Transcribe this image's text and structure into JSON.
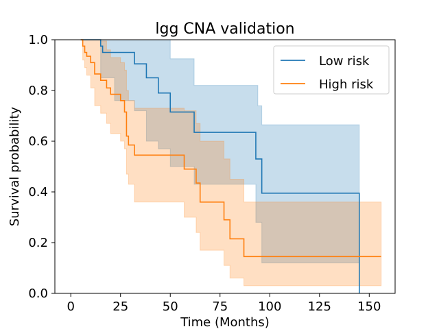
{
  "chart_data": {
    "type": "line",
    "title": "lgg CNA validation",
    "xlabel": "Time (Months)",
    "ylabel": "Survival probability",
    "xlim": [
      -8,
      163
    ],
    "ylim": [
      0,
      1
    ],
    "xticks": [
      0,
      25,
      50,
      75,
      100,
      125,
      150
    ],
    "yticks": [
      0.0,
      0.2,
      0.4,
      0.6,
      0.8,
      1.0
    ],
    "legend_position": "top-right",
    "step": "post",
    "grid": false,
    "series": [
      {
        "name": "Low risk",
        "color": "#1f77b4",
        "band_color": "#1f77b4",
        "x": [
          5,
          15,
          16,
          22,
          32,
          38,
          44,
          50,
          62,
          93,
          94,
          96,
          145,
          145
        ],
        "y": [
          1.0,
          0.975,
          0.95,
          0.95,
          0.905,
          0.85,
          0.79,
          0.715,
          0.635,
          0.53,
          0.53,
          0.395,
          0.395,
          0.0
        ],
        "ci_low": [
          1.0,
          0.85,
          0.85,
          0.76,
          0.72,
          0.6,
          0.57,
          0.5,
          0.43,
          0.28,
          0.28,
          0.12,
          0.12,
          0.12
        ],
        "ci_high": [
          1.0,
          1.0,
          1.0,
          1.0,
          1.0,
          1.0,
          1.0,
          0.925,
          0.82,
          0.82,
          0.74,
          0.665,
          0.665,
          0.665
        ]
      },
      {
        "name": "High risk",
        "color": "#ff7f0e",
        "band_color": "#ff7f0e",
        "x": [
          5,
          6,
          7,
          8,
          10,
          12,
          15,
          18,
          20,
          25,
          27,
          28,
          29,
          32,
          55,
          57,
          63,
          65,
          77,
          80,
          87,
          156
        ],
        "y": [
          1.0,
          0.975,
          0.95,
          0.935,
          0.91,
          0.865,
          0.84,
          0.81,
          0.785,
          0.76,
          0.715,
          0.62,
          0.585,
          0.545,
          0.545,
          0.49,
          0.435,
          0.36,
          0.29,
          0.215,
          0.145,
          0.145
        ],
        "ci_low": [
          1.0,
          0.92,
          0.89,
          0.86,
          0.81,
          0.74,
          0.71,
          0.67,
          0.63,
          0.6,
          0.57,
          0.47,
          0.43,
          0.36,
          0.36,
          0.3,
          0.24,
          0.17,
          0.11,
          0.06,
          0.03,
          0.03
        ],
        "ci_high": [
          1.0,
          1.0,
          1.0,
          1.0,
          1.0,
          1.0,
          0.995,
          0.96,
          0.93,
          0.91,
          0.88,
          0.8,
          0.76,
          0.73,
          0.73,
          0.72,
          0.67,
          0.6,
          0.53,
          0.45,
          0.36,
          0.36
        ]
      }
    ]
  }
}
